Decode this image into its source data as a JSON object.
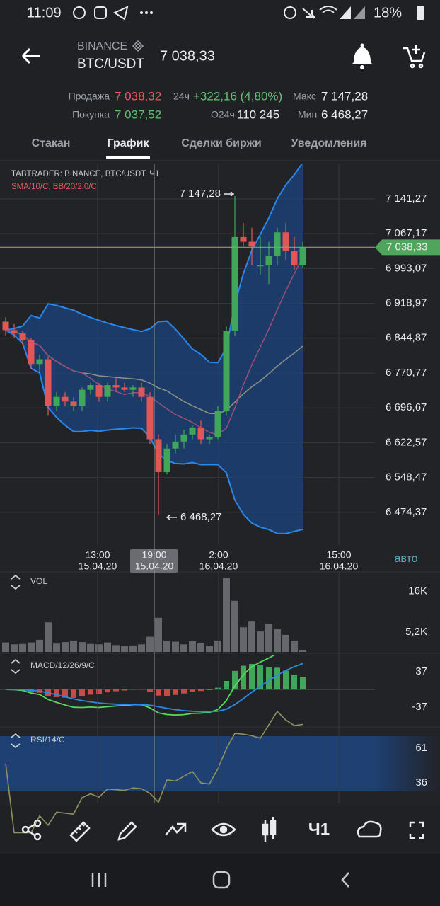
{
  "status_bar": {
    "time": "11:09",
    "battery": "18%"
  },
  "header": {
    "exchange": "BINANCE",
    "pair": "BTC/USDT",
    "price": "7 038,33"
  },
  "stats": {
    "sell_label": "Продажа",
    "sell": "7 038,32",
    "change_label": "24ч",
    "change": "+322,16 (4,80%)",
    "high_label": "Макс",
    "high": "7 147,28",
    "buy_label": "Покупка",
    "buy": "7 037,52",
    "volume_label": "О24ч",
    "volume": "110 245",
    "low_label": "Мин",
    "low": "6 468,27"
  },
  "tabs": [
    "Стакан",
    "График",
    "Сделки биржи",
    "Уведомления"
  ],
  "chart_data": [
    {
      "type": "candlestick",
      "title": "TABTRADER: BINANCE, BTC/USDT, Ч1",
      "subtitle": "SMA/10/C, BB/20/2.0/C",
      "open": [
        6880,
        6862,
        6855,
        6840,
        6790,
        6800,
        6700,
        6720,
        6710,
        6700,
        6735,
        6745,
        6720,
        6745,
        6740,
        6735,
        6740,
        6720,
        6630,
        6560,
        6610,
        6625,
        6640,
        6655,
        6630,
        6635,
        6690,
        6860,
        7060,
        7050,
        7000,
        7000,
        7020,
        7070,
        7030,
        7000
      ],
      "high": [
        6890,
        6875,
        6860,
        6845,
        6810,
        6805,
        6730,
        6730,
        6720,
        6740,
        6750,
        6750,
        6750,
        6760,
        6750,
        6745,
        6750,
        6730,
        6640,
        6620,
        6640,
        6650,
        6660,
        6670,
        6640,
        6700,
        6870,
        7147.28,
        7090,
        7080,
        7060,
        7050,
        7080,
        7090,
        7060,
        7050
      ],
      "low": [
        6850,
        6845,
        6830,
        6780,
        6770,
        6680,
        6690,
        6700,
        6690,
        6690,
        6725,
        6710,
        6710,
        6730,
        6730,
        6720,
        6710,
        6620,
        6468.27,
        6555,
        6600,
        6610,
        6630,
        6620,
        6620,
        6630,
        6680,
        6850,
        7040,
        7000,
        6980,
        6960,
        7000,
        7010,
        6990,
        6995
      ],
      "close": [
        6862,
        6855,
        6840,
        6790,
        6800,
        6700,
        6720,
        6710,
        6700,
        6735,
        6745,
        6720,
        6745,
        6740,
        6735,
        6740,
        6720,
        6630,
        6560,
        6610,
        6625,
        6640,
        6655,
        6630,
        6635,
        6690,
        6860,
        7060,
        7050,
        7040,
        7000,
        7020,
        7070,
        7030,
        7000,
        7038.33
      ],
      "ylim": [
        6404.8,
        7215.0
      ],
      "yticks": [
        {
          "value": 7141.27,
          "label": "7 141,27"
        },
        {
          "value": 7067.17,
          "label": "7 067,17"
        },
        {
          "value": 6993.07,
          "label": "6 993,07"
        },
        {
          "value": 6918.97,
          "label": "6 918,97"
        },
        {
          "value": 6844.87,
          "label": "6 844,87"
        },
        {
          "value": 6770.77,
          "label": "6 770,77"
        },
        {
          "value": 6696.67,
          "label": "6 696,67"
        },
        {
          "value": 6622.57,
          "label": "6 622,57"
        },
        {
          "value": 6548.47,
          "label": "6 548,47"
        },
        {
          "value": 6474.37,
          "label": "6 474,37"
        }
      ],
      "last_price": {
        "value": 7038.33,
        "label": "7 038,33"
      },
      "high_marker": {
        "value": 7147.28,
        "label": "7 147,28"
      },
      "low_marker": {
        "value": 6468.27,
        "label": "6 468,27"
      },
      "x_labels": [
        {
          "time": "13:00",
          "date": "15.04.20"
        },
        {
          "time": "19:00",
          "date": "15.04.20"
        },
        {
          "time": "2:00",
          "date": "16.04.20"
        },
        {
          "time": "15:00",
          "date": "16.04.20"
        }
      ],
      "scale_mode": "авто"
    },
    {
      "type": "bar",
      "title": "VOL",
      "color": "#66676c",
      "values": [
        2500,
        2000,
        2100,
        2500,
        3200,
        7800,
        2200,
        2600,
        3000,
        2600,
        2100,
        2000,
        2500,
        1800,
        1600,
        1700,
        2000,
        4000,
        9000,
        3000,
        2700,
        2000,
        2800,
        2300,
        1600,
        3000,
        19500,
        13500,
        6500,
        8000,
        5400,
        7400,
        6000,
        4500,
        3000,
        500
      ],
      "ylim": [
        0,
        20000
      ],
      "yticks": [
        {
          "value": 16000,
          "label": "16K"
        },
        {
          "value": 5200,
          "label": "5,2K"
        }
      ]
    },
    {
      "type": "macd",
      "title": "MACD/12/26/9/C",
      "ylim": [
        -68.5,
        73.2
      ],
      "yticks": [
        37,
        -37
      ]
    },
    {
      "type": "rsi",
      "title": "RSI/14/C",
      "ylim": [
        21.2,
        74.8
      ],
      "yticks": [
        61,
        36
      ]
    }
  ],
  "toolbar": {
    "timeframe": "Ч1"
  }
}
